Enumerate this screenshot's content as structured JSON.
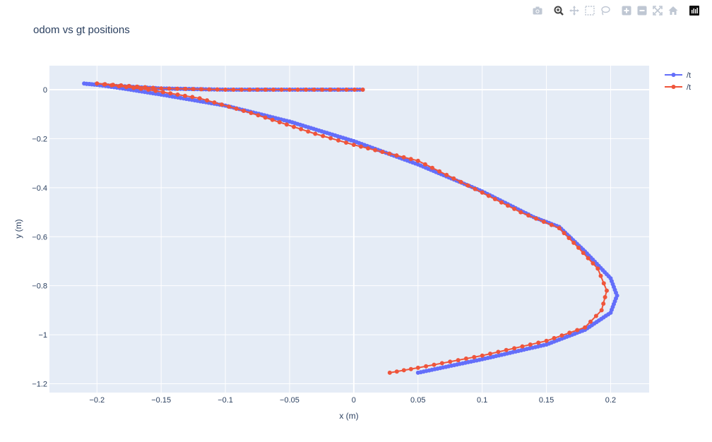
{
  "modebar": {
    "buttons": [
      "camera-icon",
      "zoom-icon",
      "pan-icon",
      "box-select-icon",
      "lasso-select-icon",
      "zoom-in-icon",
      "zoom-out-icon",
      "autoscale-icon",
      "reset-axes-icon",
      "plotly-logo-icon"
    ]
  },
  "chart_data": {
    "type": "line",
    "title": "odom vs gt positions",
    "xlabel": "x (m)",
    "ylabel": "y (m)",
    "xlim": [
      -0.237,
      0.23
    ],
    "ylim": [
      -1.236,
      0.098
    ],
    "grid": true,
    "legend_position": "top-right",
    "xticks": [
      -0.2,
      -0.15,
      -0.1,
      -0.05,
      0,
      0.05,
      0.1,
      0.15,
      0.2
    ],
    "xtick_labels": [
      "−0.2",
      "−0.15",
      "−0.1",
      "−0.05",
      "0",
      "0.05",
      "0.1",
      "0.15",
      "0.2"
    ],
    "yticks": [
      0,
      -0.2,
      -0.4,
      -0.6,
      -0.8,
      -1,
      -1.2
    ],
    "ytick_labels": [
      "0",
      "−0.2",
      "−0.4",
      "−0.6",
      "−0.8",
      "−1",
      "−1.2"
    ],
    "series": [
      {
        "name": "/t",
        "color": "#636efa",
        "points": [
          [
            0.007,
            0.0
          ],
          [
            -0.05,
            0.0
          ],
          [
            -0.1,
            0.0
          ],
          [
            -0.15,
            0.005
          ],
          [
            -0.2,
            0.02
          ],
          [
            -0.21,
            0.025
          ],
          [
            -0.2,
            0.02
          ],
          [
            -0.18,
            0.005
          ],
          [
            -0.15,
            -0.02
          ],
          [
            -0.1,
            -0.065
          ],
          [
            -0.05,
            -0.13
          ],
          [
            0.0,
            -0.21
          ],
          [
            0.05,
            -0.305
          ],
          [
            0.1,
            -0.415
          ],
          [
            0.14,
            -0.52
          ],
          [
            0.16,
            -0.56
          ],
          [
            0.18,
            -0.66
          ],
          [
            0.2,
            -0.77
          ],
          [
            0.205,
            -0.84
          ],
          [
            0.2,
            -0.91
          ],
          [
            0.18,
            -0.98
          ],
          [
            0.15,
            -1.04
          ],
          [
            0.1,
            -1.1
          ],
          [
            0.05,
            -1.155
          ]
        ]
      },
      {
        "name": "/t",
        "color": "#ef553b",
        "points": [
          [
            0.007,
            0.0
          ],
          [
            -0.05,
            0.0
          ],
          [
            -0.1,
            0.0
          ],
          [
            -0.15,
            0.005
          ],
          [
            -0.2,
            0.025
          ],
          [
            -0.16,
            0.0
          ],
          [
            -0.12,
            -0.035
          ],
          [
            -0.08,
            -0.095
          ],
          [
            -0.03,
            -0.18
          ],
          [
            0.0,
            -0.225
          ],
          [
            0.05,
            -0.29
          ],
          [
            0.1,
            -0.42
          ],
          [
            0.13,
            -0.5
          ],
          [
            0.16,
            -0.565
          ],
          [
            0.175,
            -0.645
          ],
          [
            0.19,
            -0.73
          ],
          [
            0.197,
            -0.82
          ],
          [
            0.193,
            -0.9
          ],
          [
            0.18,
            -0.97
          ],
          [
            0.15,
            -1.025
          ],
          [
            0.1,
            -1.085
          ],
          [
            0.05,
            -1.135
          ],
          [
            0.028,
            -1.155
          ]
        ]
      }
    ]
  }
}
